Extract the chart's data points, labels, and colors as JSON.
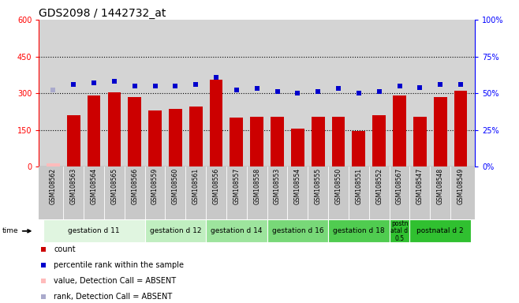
{
  "title": "GDS2098 / 1442732_at",
  "samples": [
    "GSM108562",
    "GSM108563",
    "GSM108564",
    "GSM108565",
    "GSM108566",
    "GSM108559",
    "GSM108560",
    "GSM108561",
    "GSM108556",
    "GSM108557",
    "GSM108558",
    "GSM108553",
    "GSM108554",
    "GSM108555",
    "GSM108550",
    "GSM108551",
    "GSM108552",
    "GSM108567",
    "GSM108547",
    "GSM108548",
    "GSM108549"
  ],
  "bar_values": [
    15,
    210,
    290,
    305,
    285,
    230,
    235,
    245,
    355,
    200,
    205,
    205,
    155,
    205,
    205,
    145,
    210,
    290,
    205,
    285,
    310
  ],
  "bar_absent": [
    true,
    false,
    false,
    false,
    false,
    false,
    false,
    false,
    false,
    false,
    false,
    false,
    false,
    false,
    false,
    false,
    false,
    false,
    false,
    false,
    false
  ],
  "scatter_values": [
    52,
    56,
    57,
    58,
    55,
    55,
    55,
    56,
    61,
    52,
    53,
    51,
    50,
    51,
    53,
    50,
    51,
    55,
    54,
    56,
    56
  ],
  "scatter_absent": [
    true,
    false,
    false,
    false,
    false,
    false,
    false,
    false,
    false,
    false,
    false,
    false,
    false,
    false,
    false,
    false,
    false,
    false,
    false,
    false,
    false
  ],
  "groups": [
    {
      "label": "gestation d 11",
      "start": 0,
      "end": 4,
      "color": "#e0f5e0"
    },
    {
      "label": "gestation d 12",
      "start": 5,
      "end": 7,
      "color": "#c0eec0"
    },
    {
      "label": "gestation d 14",
      "start": 8,
      "end": 10,
      "color": "#9de49d"
    },
    {
      "label": "gestation d 16",
      "start": 11,
      "end": 13,
      "color": "#78d878"
    },
    {
      "label": "gestation d 18",
      "start": 14,
      "end": 16,
      "color": "#50cc50"
    },
    {
      "label": "postn\natal d\n0.5",
      "start": 17,
      "end": 17,
      "color": "#30c030"
    },
    {
      "label": "postnatal d 2",
      "start": 18,
      "end": 20,
      "color": "#30c030"
    }
  ],
  "ylim_left": [
    0,
    600
  ],
  "ylim_right": [
    0,
    100
  ],
  "yticks_left": [
    0,
    150,
    300,
    450,
    600
  ],
  "yticks_right": [
    0,
    25,
    50,
    75,
    100
  ],
  "bar_color": "#cc0000",
  "bar_absent_color": "#ffbbbb",
  "scatter_color": "#0000cc",
  "scatter_absent_color": "#aaaacc",
  "plot_bg": "#d4d4d4",
  "tick_bg": "#c8c8c8"
}
